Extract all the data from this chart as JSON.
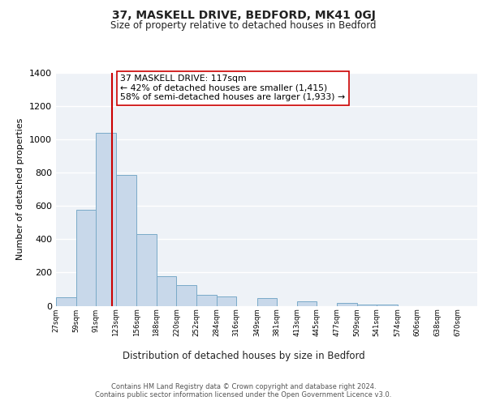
{
  "title": "37, MASKELL DRIVE, BEDFORD, MK41 0GJ",
  "subtitle": "Size of property relative to detached houses in Bedford",
  "xlabel": "Distribution of detached houses by size in Bedford",
  "ylabel": "Number of detached properties",
  "bar_left_edges": [
    27,
    59,
    91,
    123,
    156,
    188,
    220,
    252,
    284,
    316,
    349,
    381,
    413,
    445,
    477,
    509,
    541,
    574,
    606,
    638
  ],
  "bar_widths": [
    32,
    32,
    32,
    33,
    32,
    32,
    32,
    32,
    32,
    33,
    32,
    32,
    32,
    32,
    32,
    32,
    33,
    32,
    32,
    32
  ],
  "bar_heights": [
    50,
    575,
    1040,
    785,
    430,
    180,
    125,
    65,
    55,
    0,
    45,
    0,
    25,
    0,
    15,
    5,
    5,
    0,
    0,
    0
  ],
  "bar_color": "#c8d8ea",
  "bar_edgecolor": "#7aaac8",
  "tick_labels": [
    "27sqm",
    "59sqm",
    "91sqm",
    "123sqm",
    "156sqm",
    "188sqm",
    "220sqm",
    "252sqm",
    "284sqm",
    "316sqm",
    "349sqm",
    "381sqm",
    "413sqm",
    "445sqm",
    "477sqm",
    "509sqm",
    "541sqm",
    "574sqm",
    "606sqm",
    "638sqm",
    "670sqm"
  ],
  "ylim": [
    0,
    1400
  ],
  "yticks": [
    0,
    200,
    400,
    600,
    800,
    1000,
    1200,
    1400
  ],
  "property_size": 117,
  "property_line_color": "#cc0000",
  "annotation_title": "37 MASKELL DRIVE: 117sqm",
  "annotation_line1": "← 42% of detached houses are smaller (1,415)",
  "annotation_line2": "58% of semi-detached houses are larger (1,933) →",
  "footer_line1": "Contains HM Land Registry data © Crown copyright and database right 2024.",
  "footer_line2": "Contains public sector information licensed under the Open Government Licence v3.0.",
  "plot_bg_color": "#eef2f7",
  "grid_color": "#ffffff",
  "fig_facecolor": "#ffffff"
}
